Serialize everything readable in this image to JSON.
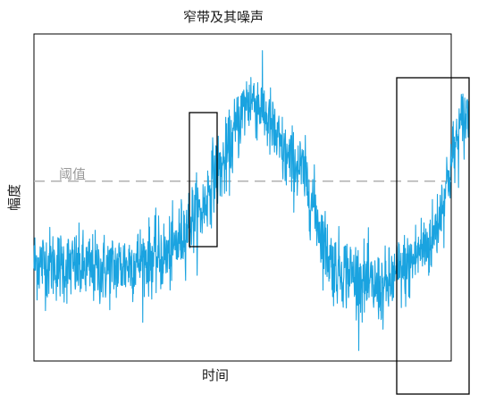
{
  "chart_data": {
    "type": "line",
    "title": "窄带及其噪声",
    "xlabel": "时间",
    "ylabel": "幅度",
    "threshold_label": "阈值",
    "grid": false,
    "legend": "none",
    "ticks": false,
    "series": [
      {
        "color": "#1aa3e0",
        "description_points": [
          {
            "x": 0.0,
            "y": 0.3
          },
          {
            "x": 0.15,
            "y": 0.28
          },
          {
            "x": 0.3,
            "y": 0.32
          },
          {
            "x": 0.38,
            "y": 0.45
          },
          {
            "x": 0.42,
            "y": 0.58
          },
          {
            "x": 0.5,
            "y": 0.8
          },
          {
            "x": 0.6,
            "y": 0.6
          },
          {
            "x": 0.7,
            "y": 0.28
          },
          {
            "x": 0.8,
            "y": 0.22
          },
          {
            "x": 0.85,
            "y": 0.28
          },
          {
            "x": 0.9,
            "y": 0.35
          },
          {
            "x": 1.0,
            "y": 0.75
          }
        ]
      }
    ],
    "threshold_value": 0.55,
    "highlight_windows": [
      {
        "x_start": 0.38,
        "x_end": 0.44
      },
      {
        "x_start": 0.87,
        "x_end": 1.02
      }
    ]
  },
  "colors": {
    "signal": "#1aa3e0",
    "threshold": "#b0b0b0",
    "frame": "#000000"
  }
}
